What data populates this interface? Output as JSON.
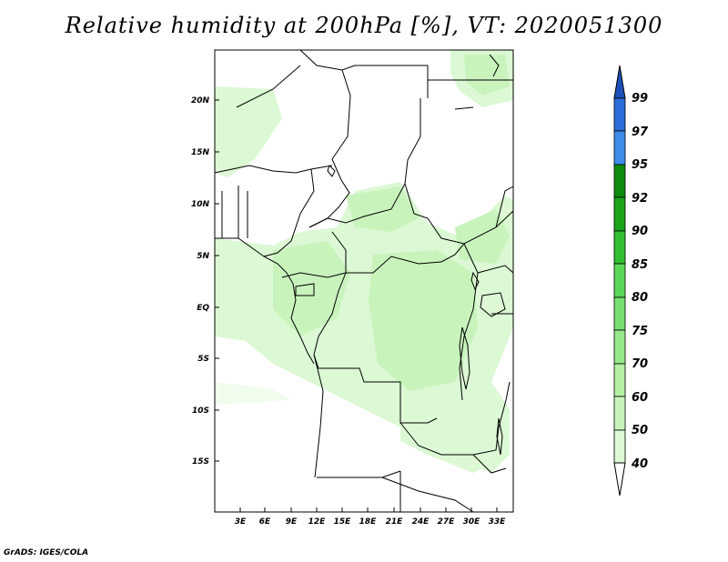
{
  "title": "Relative humidity at 200hPa [%], VT: 2020051300",
  "credit": "GrADS: IGES/COLA",
  "map": {
    "lon_labels": [
      "3E",
      "6E",
      "9E",
      "12E",
      "15E",
      "18E",
      "21E",
      "24E",
      "27E",
      "30E",
      "33E"
    ],
    "lat_labels": [
      "20N",
      "15N",
      "10N",
      "5N",
      "EQ",
      "5S",
      "10S",
      "15S"
    ]
  },
  "colorbar": {
    "levels": [
      "40",
      "50",
      "60",
      "70",
      "75",
      "80",
      "85",
      "90",
      "92",
      "95",
      "97",
      "99"
    ],
    "colors": [
      "#f0fcec",
      "#dcf8d4",
      "#c8f4bc",
      "#b4f0a4",
      "#96e88a",
      "#78e070",
      "#5ad858",
      "#32c032",
      "#1aa41a",
      "#0c8c0c",
      "#3c8ce8",
      "#2a6cd8",
      "#1c50b8"
    ]
  },
  "colors": {
    "light_green": "#dcf8d4",
    "mid_green": "#c8f4bc",
    "pale_green": "#f0fcec"
  }
}
